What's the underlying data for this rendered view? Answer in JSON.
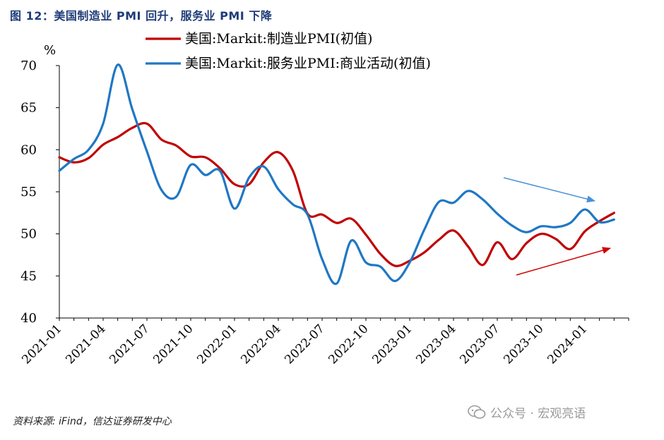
{
  "title": "图 12：美国制造业 PMI 回升，服务业 PMI 下降",
  "source": "资料来源: iFind，信达证券研发中心",
  "watermark": "公众号 · 宏观亮语",
  "chart_data": {
    "type": "line",
    "ylabel": "%",
    "ylim": [
      40,
      70
    ],
    "yticks": [
      40,
      45,
      50,
      55,
      60,
      65,
      70
    ],
    "x": [
      "2021-01",
      "2021-02",
      "2021-03",
      "2021-04",
      "2021-05",
      "2021-06",
      "2021-07",
      "2021-08",
      "2021-09",
      "2021-10",
      "2021-11",
      "2021-12",
      "2022-01",
      "2022-02",
      "2022-03",
      "2022-04",
      "2022-05",
      "2022-06",
      "2022-07",
      "2022-08",
      "2022-09",
      "2022-10",
      "2022-11",
      "2022-12",
      "2023-01",
      "2023-02",
      "2023-03",
      "2023-04",
      "2023-05",
      "2023-06",
      "2023-07",
      "2023-08",
      "2023-09",
      "2023-10",
      "2023-11",
      "2023-12",
      "2024-01",
      "2024-02",
      "2024-03",
      "2024-04"
    ],
    "xticks": [
      "2021-01",
      "2021-04",
      "2021-07",
      "2021-10",
      "2022-01",
      "2022-04",
      "2022-07",
      "2022-10",
      "2023-01",
      "2023-04",
      "2023-07",
      "2023-10",
      "2024-01"
    ],
    "series": [
      {
        "name": "美国:Markit:制造业PMI(初值)",
        "color": "#c00000",
        "values": [
          59.1,
          58.5,
          59.0,
          60.6,
          61.5,
          62.6,
          63.1,
          61.2,
          60.5,
          59.2,
          59.1,
          57.8,
          55.9,
          55.9,
          58.5,
          59.7,
          57.5,
          52.4,
          52.3,
          51.3,
          51.8,
          49.9,
          47.6,
          46.2,
          46.8,
          47.8,
          49.3,
          50.4,
          48.5,
          46.3,
          49.0,
          47.0,
          48.9,
          50.0,
          49.4,
          48.2,
          50.3,
          51.5,
          52.5,
          null
        ]
      },
      {
        "name": "美国:Markit:服务业PMI:商业活动(初值)",
        "color": "#1f77c4",
        "values": [
          57.5,
          58.9,
          60.0,
          63.1,
          70.1,
          64.8,
          59.8,
          55.2,
          54.4,
          58.2,
          57.0,
          57.5,
          53.0,
          56.7,
          58.0,
          55.3,
          53.5,
          52.3,
          47.0,
          44.1,
          49.2,
          46.6,
          46.1,
          44.4,
          46.6,
          50.5,
          53.8,
          53.7,
          55.1,
          54.1,
          52.4,
          51.0,
          50.2,
          50.9,
          50.8,
          51.3,
          52.9,
          51.4,
          51.7,
          null
        ]
      }
    ],
    "legend": "top"
  }
}
